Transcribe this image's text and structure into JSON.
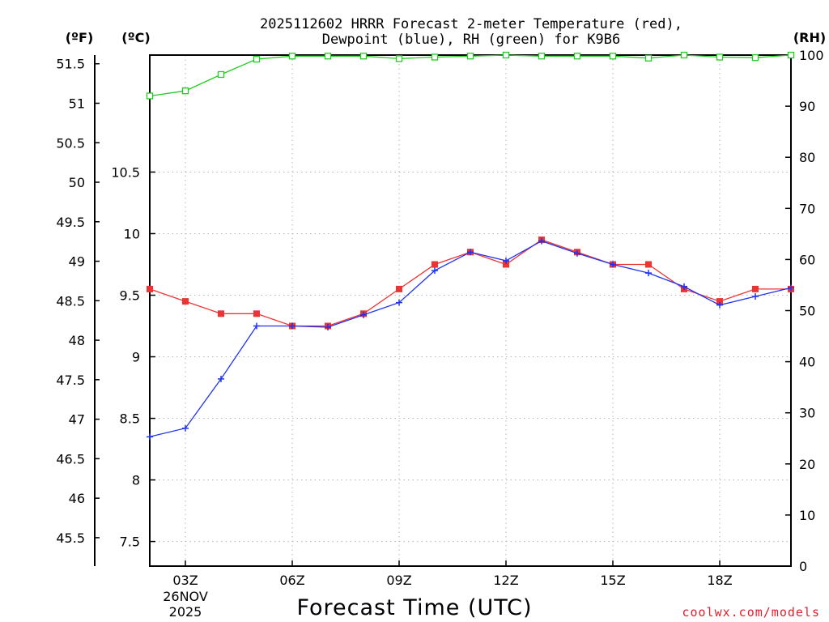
{
  "chart_data": {
    "type": "line",
    "title_line1": "2025112602 HRRR Forecast 2-meter Temperature (red),",
    "title_line2": "Dewpoint (blue), RH (green) for K9B6",
    "units": {
      "fahrenheit": "(ºF)",
      "celsius": "(ºC)",
      "rh": "(RH)"
    },
    "xlabel": "Forecast Time (UTC)",
    "credit": "coolwx.com/models",
    "x_hours": [
      2,
      3,
      4,
      5,
      6,
      7,
      8,
      9,
      10,
      11,
      12,
      13,
      14,
      15,
      16,
      17,
      18,
      19,
      20
    ],
    "x_ticks": [
      {
        "hour": 3,
        "label": "03Z",
        "sub": [
          "26NOV",
          "2025"
        ]
      },
      {
        "hour": 6,
        "label": "06Z",
        "sub": []
      },
      {
        "hour": 9,
        "label": "09Z",
        "sub": []
      },
      {
        "hour": 12,
        "label": "12Z",
        "sub": []
      },
      {
        "hour": 15,
        "label": "15Z",
        "sub": []
      },
      {
        "hour": 18,
        "label": "18Z",
        "sub": []
      }
    ],
    "xlim": [
      2,
      20
    ],
    "celsius_axis": {
      "ylim": [
        7.3,
        11.45
      ],
      "ticks": [
        "7.5",
        "8",
        "8.5",
        "9",
        "9.5",
        "10",
        "10.5"
      ]
    },
    "fahrenheit_axis": {
      "ylim": [
        45.14,
        51.61
      ],
      "ticks": [
        "45.5",
        "46",
        "46.5",
        "47",
        "47.5",
        "48",
        "48.5",
        "49",
        "49.5",
        "50",
        "50.5",
        "51",
        "51.5"
      ]
    },
    "rh_axis": {
      "ylim": [
        0,
        100
      ],
      "ticks": [
        "0",
        "10",
        "20",
        "30",
        "40",
        "50",
        "60",
        "70",
        "80",
        "90",
        "100"
      ]
    },
    "series": [
      {
        "name": "Temperature",
        "axis": "celsius",
        "color": "#ee3333",
        "marker": "filled-square",
        "values": [
          9.55,
          9.45,
          9.35,
          9.35,
          9.25,
          9.25,
          9.35,
          9.55,
          9.75,
          9.85,
          9.75,
          9.95,
          9.85,
          9.75,
          9.75,
          9.55,
          9.45,
          9.55,
          9.55
        ]
      },
      {
        "name": "Dewpoint",
        "axis": "celsius",
        "color": "#2233ee",
        "marker": "plus",
        "values": [
          8.35,
          8.42,
          8.82,
          9.25,
          9.25,
          9.24,
          9.34,
          9.44,
          9.7,
          9.85,
          9.78,
          9.94,
          9.84,
          9.75,
          9.68,
          9.57,
          9.42,
          9.49,
          9.56
        ]
      },
      {
        "name": "RH",
        "axis": "rh",
        "color": "#22cc22",
        "marker": "open-square",
        "values": [
          92,
          93,
          96.2,
          99.2,
          99.8,
          99.8,
          99.8,
          99.3,
          99.6,
          99.8,
          100,
          99.8,
          99.8,
          99.8,
          99.4,
          100,
          99.6,
          99.5,
          100
        ]
      }
    ]
  }
}
